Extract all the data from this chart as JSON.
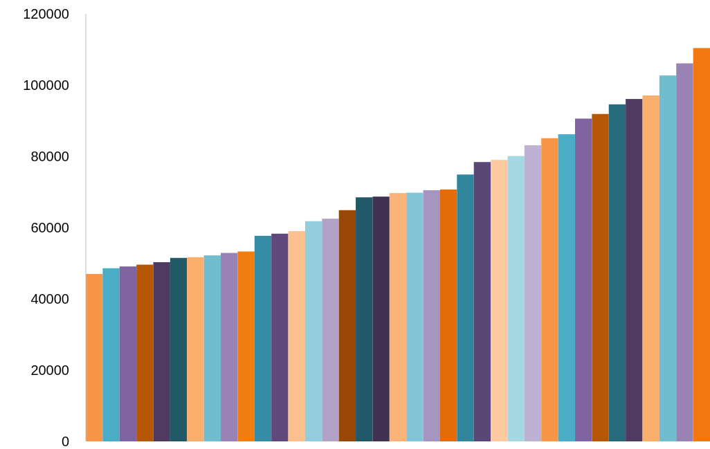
{
  "chart_data": {
    "type": "bar",
    "categories": [
      null,
      null,
      null,
      null,
      null,
      null,
      null,
      null,
      null,
      null,
      null,
      null,
      null,
      null,
      null,
      null,
      null,
      null,
      null,
      null,
      null,
      null,
      null,
      null,
      null,
      null,
      null,
      null,
      null,
      null,
      null,
      null,
      null,
      null,
      null,
      null,
      null
    ],
    "values": [
      47000,
      48600,
      49100,
      49600,
      50300,
      51500,
      51700,
      52200,
      52900,
      53300,
      57700,
      58300,
      59000,
      61800,
      62500,
      64900,
      68500,
      68700,
      69700,
      69800,
      70500,
      70700,
      74900,
      78400,
      79000,
      80100,
      83100,
      85100,
      86200,
      90600,
      91900,
      94600,
      96100,
      97100,
      102700,
      106100,
      110400
    ],
    "colors": [
      "#f79646",
      "#4bacc6",
      "#8064a2",
      "#b65708",
      "#4f3b62",
      "#215968",
      "#f9ae6b",
      "#72bcd0",
      "#9983b4",
      "#f07d10",
      "#358ca5",
      "#60497a",
      "#fac090",
      "#93cddd",
      "#b3a2c7",
      "#974806",
      "#215968",
      "#403151",
      "#fab47a",
      "#83c4d6",
      "#a695c1",
      "#e36c09",
      "#31859c",
      "#5a4775",
      "#fcc9a0",
      "#a6d8e4",
      "#bfb1d3",
      "#f79646",
      "#4bacc6",
      "#8064a2",
      "#b65708",
      "#276b7b",
      "#4f3b62",
      "#f9ae6b",
      "#72bcd0",
      "#9983b4",
      "#f27710"
    ],
    "ylim": [
      0,
      120000
    ],
    "yticks": [
      0,
      20000,
      40000,
      60000,
      80000,
      100000,
      120000
    ]
  }
}
